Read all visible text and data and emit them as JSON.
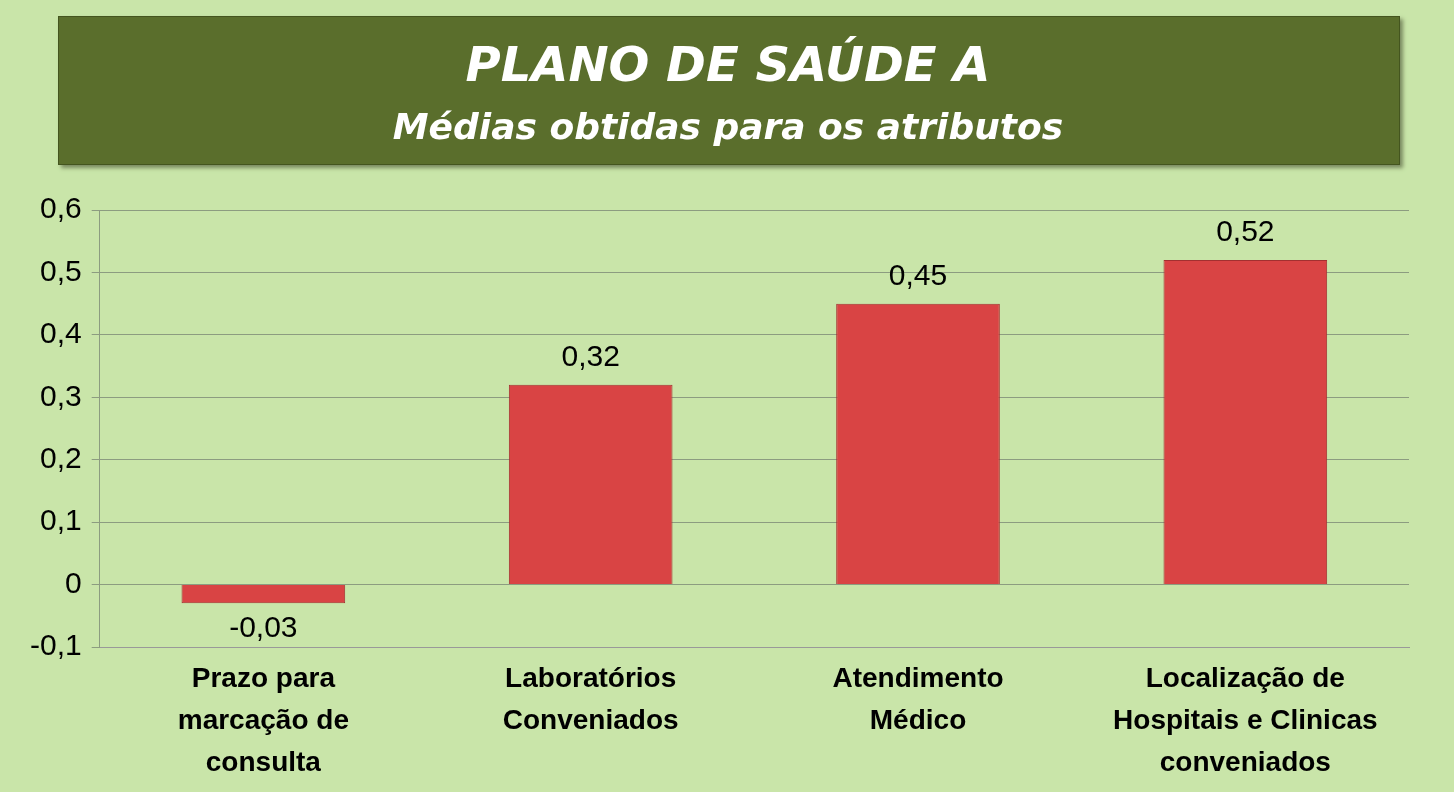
{
  "chart_data": {
    "type": "bar",
    "title": "PLANO DE SAÚDE A",
    "subtitle": "Médias obtidas para os atributos",
    "categories": [
      "Prazo para marcação de consulta",
      "Laboratórios Conveniados",
      "Atendimento Médico",
      "Localização de Hospitais e Clinicas conveniados"
    ],
    "values": [
      -0.03,
      0.32,
      0.45,
      0.52
    ],
    "color": "#d94444",
    "ylim": [
      -0.1,
      0.6
    ],
    "yticks": [
      {
        "value": -0.1,
        "label": "-0,1"
      },
      {
        "value": 0,
        "label": "0"
      },
      {
        "value": 0.1,
        "label": "0,1"
      },
      {
        "value": 0.2,
        "label": "0,2"
      },
      {
        "value": 0.3,
        "label": "0,3"
      },
      {
        "value": 0.4,
        "label": "0,4"
      },
      {
        "value": 0.5,
        "label": "0,5"
      },
      {
        "value": 0.6,
        "label": "0,6"
      }
    ],
    "value_labels": [
      "-0,03",
      "0,32",
      "0,45",
      "0,52"
    ],
    "grid": "y",
    "legend": false
  }
}
